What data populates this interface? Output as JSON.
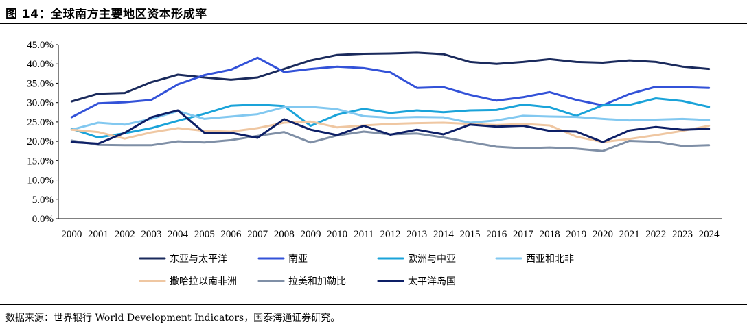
{
  "figure": {
    "title": "图 14：全球南方主要地区资本形成率",
    "source": "数据来源：世界银行 World Development Indicators，国泰海通证券研究。"
  },
  "chart_data": {
    "type": "line",
    "title": "",
    "xlabel": "",
    "ylabel": "",
    "ylim": [
      0,
      45
    ],
    "y_ticks": [
      0,
      5,
      10,
      15,
      20,
      25,
      30,
      35,
      40,
      45
    ],
    "y_tick_labels": [
      "0.0%",
      "5.0%",
      "10.0%",
      "15.0%",
      "20.0%",
      "25.0%",
      "30.0%",
      "35.0%",
      "40.0%",
      "45.0%"
    ],
    "grid": false,
    "legend_position": "bottom",
    "x": [
      "2000",
      "2001",
      "2002",
      "2003",
      "2004",
      "2005",
      "2006",
      "2007",
      "2008",
      "2009",
      "2010",
      "2011",
      "2012",
      "2013",
      "2014",
      "2015",
      "2016",
      "2017",
      "2018",
      "2019",
      "2020",
      "2021",
      "2022",
      "2023",
      "2024"
    ],
    "series": [
      {
        "name": "东亚与太平洋",
        "color": "#1a2a5c",
        "values": [
          30.3,
          32.3,
          32.5,
          35.3,
          37.2,
          36.5,
          35.9,
          36.5,
          38.7,
          40.9,
          42.3,
          42.6,
          42.7,
          42.9,
          42.5,
          40.5,
          40.0,
          40.5,
          41.2,
          40.5,
          40.3,
          40.9,
          40.5,
          39.3,
          38.7
        ]
      },
      {
        "name": "南亚",
        "color": "#3352d8",
        "values": [
          26.2,
          29.8,
          30.1,
          30.7,
          34.7,
          37.1,
          38.5,
          41.6,
          37.9,
          38.7,
          39.3,
          38.9,
          37.8,
          33.8,
          34.0,
          32.0,
          30.5,
          31.4,
          32.7,
          30.7,
          29.3,
          32.2,
          34.1,
          34.0,
          33.8
        ]
      },
      {
        "name": "欧洲与中亚",
        "color": "#1aa3d9",
        "values": [
          23.2,
          21.0,
          22.1,
          23.4,
          25.3,
          27.1,
          29.2,
          29.5,
          29.1,
          24.0,
          26.9,
          28.4,
          27.3,
          28.0,
          27.5,
          28.0,
          28.1,
          29.5,
          28.8,
          26.6,
          29.3,
          29.4,
          31.1,
          30.4,
          28.9
        ]
      },
      {
        "name": "西亚和北非",
        "color": "#82c8f0",
        "values": [
          23.0,
          24.8,
          24.3,
          25.8,
          27.8,
          25.8,
          26.4,
          27.0,
          28.8,
          28.9,
          28.3,
          26.5,
          26.1,
          26.3,
          26.2,
          24.8,
          25.4,
          26.6,
          26.4,
          26.3,
          25.8,
          25.4,
          25.6,
          25.8,
          25.5
        ]
      },
      {
        "name": "撒哈拉以南非洲",
        "color": "#efc7a2",
        "values": [
          23.0,
          22.4,
          20.7,
          22.3,
          23.4,
          22.7,
          22.5,
          23.4,
          24.8,
          25.1,
          23.6,
          24.1,
          24.5,
          24.7,
          24.8,
          24.5,
          24.2,
          24.5,
          24.1,
          21.2,
          19.8,
          20.6,
          21.6,
          22.7,
          24.0
        ]
      },
      {
        "name": "拉美和加勒比",
        "color": "#7f8fa6",
        "values": [
          20.2,
          19.1,
          19.0,
          19.0,
          20.0,
          19.7,
          20.3,
          21.4,
          22.4,
          19.7,
          21.5,
          22.5,
          21.8,
          22.0,
          21.0,
          19.8,
          18.6,
          18.2,
          18.4,
          18.1,
          17.5,
          20.1,
          19.9,
          18.8,
          19.0
        ]
      },
      {
        "name": "太平洋岛国",
        "color": "#0d1f66",
        "values": [
          19.8,
          19.4,
          22.2,
          26.2,
          28.0,
          22.2,
          22.2,
          20.9,
          25.7,
          23.0,
          21.6,
          24.0,
          21.7,
          23.0,
          21.8,
          24.3,
          23.8,
          24.0,
          22.7,
          22.5,
          19.8,
          22.8,
          23.7,
          23.0,
          23.2
        ]
      }
    ]
  }
}
